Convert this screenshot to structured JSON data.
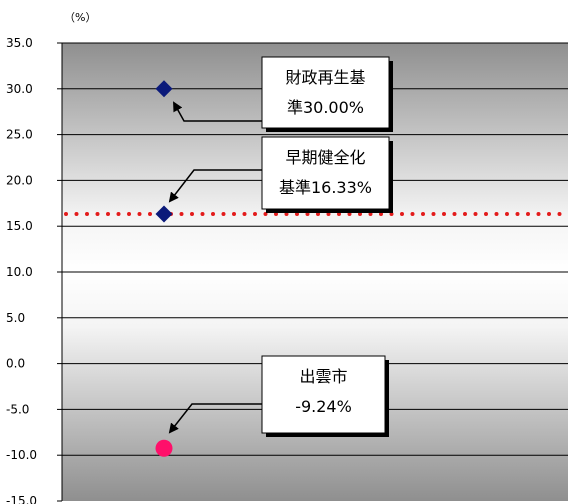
{
  "chart_data": {
    "type": "scatter",
    "unit_label": "（%）",
    "ylim": [
      -15,
      35
    ],
    "yticks": [
      35,
      30,
      25,
      20,
      15,
      10,
      5,
      0,
      -5,
      -10,
      -15
    ],
    "ytick_labels": [
      "35.0",
      "30.0",
      "25.0",
      "20.0",
      "15.0",
      "10.0",
      "5.0",
      "0.0",
      "-5.0",
      "-10.0",
      "-15.0"
    ],
    "grid": true,
    "threshold_line": {
      "value": 16.33,
      "style": "dotted",
      "color": "#e31b1b"
    },
    "points": [
      {
        "value": 30.0,
        "marker": "diamond",
        "color": "#0b1a7a"
      },
      {
        "value": 16.33,
        "marker": "diamond",
        "color": "#0b1a7a"
      },
      {
        "value": -9.24,
        "marker": "circle",
        "color": "#ff0f6a"
      }
    ],
    "annotations": [
      {
        "lines": [
          "財政再生基",
          "準30.00%"
        ]
      },
      {
        "lines": [
          "早期健全化",
          "基準16.33%"
        ]
      },
      {
        "lines": [
          "出雲市",
          "-9.24%"
        ]
      }
    ]
  }
}
